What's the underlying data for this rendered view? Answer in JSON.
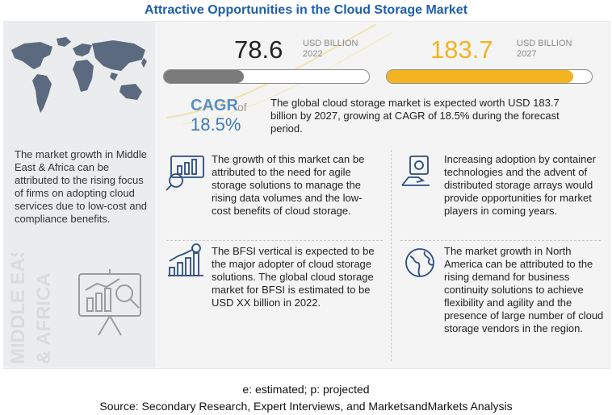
{
  "title": "Attractive Opportunities in the Cloud Storage Market",
  "left": {
    "text": "The market growth in Middle East & Africa can be attributed to the rising focus of firms on adopting cloud services due to low-cost and compliance benefits.",
    "region_line1": "MIDDLE EAST",
    "region_line2": "& AFRICA"
  },
  "chart_data": {
    "type": "bar",
    "categories": [
      "2022",
      "2027"
    ],
    "values": [
      78.6,
      183.7
    ],
    "unit": "USD BILLION",
    "cagr": "18.5%",
    "colors": [
      "#7b7b7b",
      "#f4b320"
    ]
  },
  "kpi": {
    "v2022": "78.6",
    "unit": "USD BILLION",
    "y2022": "2022",
    "v2027": "183.7",
    "y2027": "2027",
    "cagr_label": "CAGR",
    "cagr_of": "of",
    "cagr_value": "18.5%",
    "description": "The global cloud storage market is expected worth USD 183.7 billion by 2027, growing at CAGR of 18.5% during the forecast period."
  },
  "insights": [
    {
      "icon": "growth-analytics-icon",
      "text": "The growth of this market can be attributed to the need for agile storage solutions to manage the rising data volumes and the low-cost benefits of cloud storage."
    },
    {
      "icon": "money-hand-icon",
      "text": "Increasing adoption by container technologies and the advent of distributed storage arrays would provide opportunities for market players in coming years."
    },
    {
      "icon": "bar-chart-dollar-icon",
      "text": "The BFSI vertical is expected to be the major adopter of cloud storage solutions. The global cloud storage market for BFSI is estimated to be USD XX billion in 2022."
    },
    {
      "icon": "globe-icon",
      "text": "The market growth in North America can be attributed to the rising demand for business continuity solutions to achieve flexibility and agility and the presence of large number of cloud storage vendors in the region."
    }
  ],
  "footnote": "e: estimated; p: projected",
  "source": "Source: Secondary Research, Expert Interviews, and MarketsandMarkets Analysis"
}
